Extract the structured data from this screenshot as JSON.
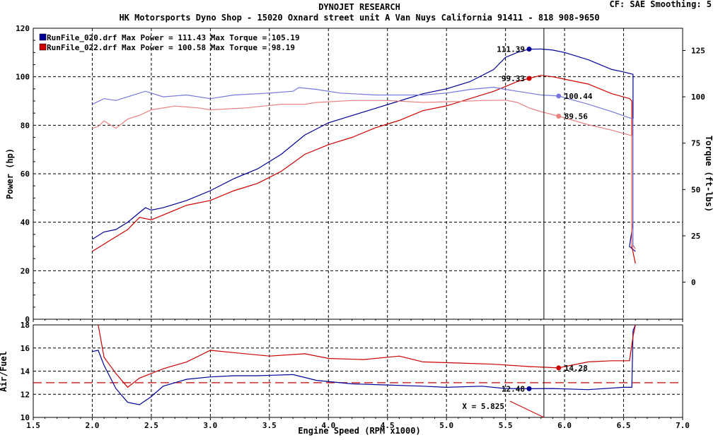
{
  "header": {
    "title": "DYNOJET RESEARCH",
    "subtitle": "HK Motorsports Dyno Shop - 15020 Oxnard street unit A Van Nuys California 91411 - 818 908-9650",
    "settings": "CF: SAE  Smoothing: 5"
  },
  "colors": {
    "run1": "#000099",
    "run1_torque": "#7777dd",
    "run2": "#cc0000",
    "run2_torque": "#e88080",
    "afr_target": "#cc0000"
  },
  "legend": [
    {
      "text": "RunFile_020.drf Max Power = 111.43     Max Torque = 105.19",
      "color": "#000099"
    },
    {
      "text": "RunFile_022.drf Max Power = 100.58     Max Torque = 98.19",
      "color": "#cc0000"
    }
  ],
  "chart_data": [
    {
      "type": "line",
      "title": "",
      "xlabel": "Engine Speed (RPM x1000)",
      "ylabel": "Power (hp)",
      "y2label": "Torque (ft-lbs)",
      "xlim": [
        1.5,
        7.0
      ],
      "ylim": [
        0,
        120
      ],
      "y2lim": [
        -20,
        137
      ],
      "xticks": [
        "1.5",
        "2.0",
        "2.5",
        "3.0",
        "3.5",
        "4.0",
        "4.5",
        "5.0",
        "5.5",
        "6.0",
        "6.5",
        "7.0"
      ],
      "yticks": [
        "0",
        "20",
        "40",
        "60",
        "80",
        "100",
        "120"
      ],
      "y2ticks": [
        "0",
        "25",
        "50",
        "75",
        "100",
        "125"
      ],
      "grid": true,
      "cursor_x": 5.825,
      "series": [
        {
          "name": "RunFile_020.drf Power",
          "axis": "left",
          "color": "#000099",
          "x": [
            2.0,
            2.1,
            2.2,
            2.3,
            2.4,
            2.45,
            2.5,
            2.6,
            2.8,
            3.0,
            3.2,
            3.4,
            3.6,
            3.8,
            4.0,
            4.2,
            4.4,
            4.6,
            4.8,
            5.0,
            5.2,
            5.4,
            5.5,
            5.6,
            5.7,
            5.8,
            5.9,
            6.0,
            6.2,
            6.4,
            6.5,
            6.58,
            6.58,
            6.55,
            6.6
          ],
          "y": [
            33,
            36,
            37,
            40,
            44,
            46,
            45,
            46,
            49,
            53,
            58,
            62,
            68,
            76,
            81,
            84,
            87,
            90,
            93,
            95,
            98,
            103,
            108,
            110,
            111.39,
            111.43,
            111,
            110,
            107,
            103,
            102,
            101,
            40,
            30,
            28
          ]
        },
        {
          "name": "RunFile_022.drf Power",
          "axis": "left",
          "color": "#cc0000",
          "x": [
            2.0,
            2.1,
            2.2,
            2.3,
            2.4,
            2.5,
            2.6,
            2.8,
            3.0,
            3.2,
            3.4,
            3.6,
            3.8,
            4.0,
            4.2,
            4.4,
            4.6,
            4.8,
            5.0,
            5.2,
            5.4,
            5.5,
            5.6,
            5.7,
            5.8,
            5.9,
            6.0,
            6.2,
            6.4,
            6.55,
            6.57,
            6.57,
            6.6
          ],
          "y": [
            28,
            31,
            34,
            37,
            42,
            41,
            43,
            47,
            49,
            53,
            56,
            61,
            68,
            72,
            75,
            79,
            82,
            86,
            88,
            91,
            94,
            96,
            98,
            99.33,
            100.58,
            100,
            99,
            97,
            93,
            91,
            90,
            30,
            23
          ]
        },
        {
          "name": "RunFile_020.drf Torque",
          "axis": "right",
          "color": "#7777dd",
          "x": [
            2.0,
            2.1,
            2.2,
            2.3,
            2.45,
            2.6,
            2.8,
            3.0,
            3.2,
            3.5,
            3.7,
            3.75,
            3.9,
            4.1,
            4.4,
            4.8,
            5.0,
            5.2,
            5.4,
            5.5,
            5.6,
            5.7,
            5.8,
            5.95,
            6.2,
            6.4,
            6.58,
            6.58,
            6.6
          ],
          "y": [
            96,
            99,
            98,
            100,
            103,
            100,
            101,
            99,
            101,
            102,
            103,
            105,
            104,
            102,
            101,
            101,
            102,
            104,
            105.19,
            104,
            103,
            102,
            101,
            100.44,
            96,
            92,
            88,
            20,
            18
          ]
        },
        {
          "name": "RunFile_022.drf Torque",
          "axis": "right",
          "color": "#e88080",
          "x": [
            2.0,
            2.05,
            2.1,
            2.2,
            2.3,
            2.4,
            2.5,
            2.7,
            2.9,
            3.0,
            3.3,
            3.6,
            3.8,
            3.9,
            4.2,
            4.5,
            4.8,
            5.1,
            5.3,
            5.5,
            5.6,
            5.7,
            5.8,
            5.95,
            6.2,
            6.4,
            6.57,
            6.57,
            6.6
          ],
          "y": [
            83,
            84,
            87,
            83,
            88,
            90,
            93,
            95,
            94,
            93,
            94,
            96,
            96,
            97,
            98,
            98,
            97,
            97.5,
            98,
            98.19,
            97,
            94,
            92,
            89.56,
            85,
            82,
            79,
            20,
            18
          ]
        }
      ],
      "annotations": [
        {
          "text": "111.39",
          "x": 5.7,
          "y": 111.39,
          "axis": "left",
          "color": "#000099",
          "side": "left"
        },
        {
          "text": "99.33",
          "x": 5.7,
          "y": 99.33,
          "axis": "left",
          "color": "#cc0000",
          "side": "left"
        },
        {
          "text": "100.44",
          "x": 5.95,
          "y": 100.44,
          "axis": "right",
          "color": "#7777dd",
          "side": "right"
        },
        {
          "text": "89.56",
          "x": 5.95,
          "y": 89.56,
          "axis": "right",
          "color": "#e88080",
          "side": "right"
        }
      ]
    },
    {
      "type": "line",
      "title": "",
      "xlabel": "Engine Speed (RPM x1000)",
      "ylabel": "Air/Fuel",
      "xlim": [
        1.5,
        7.0
      ],
      "ylim": [
        10,
        18
      ],
      "xticks": [
        "1.5",
        "2.0",
        "2.5",
        "3.0",
        "3.5",
        "4.0",
        "4.5",
        "5.0",
        "5.5",
        "6.0",
        "6.5",
        "7.0"
      ],
      "yticks": [
        "10",
        "12",
        "14",
        "16",
        "18"
      ],
      "grid": true,
      "reference_line": {
        "y": 13.0,
        "color": "#cc0000",
        "style": "dashed"
      },
      "cursor_label": "X = 5.825",
      "series": [
        {
          "name": "RunFile_020.drf Air/Fuel",
          "color": "#000099",
          "x": [
            2.0,
            2.05,
            2.1,
            2.2,
            2.3,
            2.4,
            2.5,
            2.6,
            2.8,
            3.0,
            3.2,
            3.4,
            3.7,
            3.9,
            4.2,
            4.5,
            4.8,
            5.0,
            5.3,
            5.5,
            5.7,
            5.9,
            6.2,
            6.5,
            6.57,
            6.58,
            6.6
          ],
          "y": [
            15.7,
            15.8,
            14.5,
            12.5,
            11.3,
            11.1,
            11.8,
            12.7,
            13.3,
            13.5,
            13.6,
            13.6,
            13.7,
            13.2,
            12.9,
            12.8,
            12.7,
            12.6,
            12.7,
            12.5,
            12.48,
            12.5,
            12.4,
            12.6,
            12.6,
            17.5,
            18.0
          ]
        },
        {
          "name": "RunFile_022.drf Air/Fuel",
          "color": "#cc0000",
          "x": [
            2.05,
            2.1,
            2.2,
            2.3,
            2.4,
            2.5,
            2.6,
            2.8,
            3.0,
            3.2,
            3.5,
            3.8,
            4.0,
            4.3,
            4.6,
            4.8,
            5.1,
            5.4,
            5.7,
            5.95,
            6.2,
            6.4,
            6.55,
            6.58,
            6.6
          ],
          "y": [
            18.0,
            15.2,
            13.8,
            12.6,
            13.4,
            13.8,
            14.2,
            14.8,
            15.8,
            15.6,
            15.3,
            15.5,
            15.1,
            15.0,
            15.3,
            14.8,
            14.7,
            14.6,
            14.4,
            14.28,
            14.8,
            14.9,
            14.9,
            17.0,
            18.0
          ]
        }
      ],
      "annotations": [
        {
          "text": "14.28",
          "x": 5.95,
          "y": 14.28,
          "color": "#cc0000",
          "side": "right"
        },
        {
          "text": "12.48",
          "x": 5.7,
          "y": 12.48,
          "color": "#000099",
          "side": "left"
        }
      ]
    }
  ]
}
